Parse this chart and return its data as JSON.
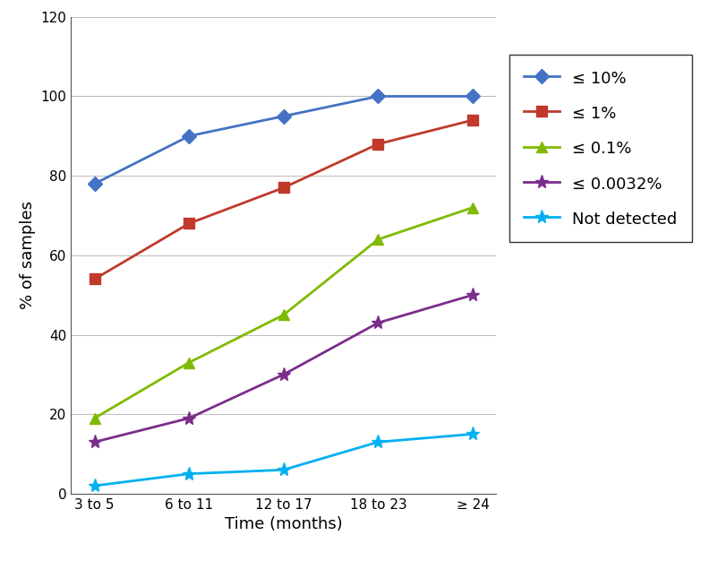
{
  "x_labels": [
    "3 to 5",
    "6 to 11",
    "12 to 17",
    "18 to 23",
    "≥ 24"
  ],
  "x_positions": [
    0,
    1,
    2,
    3,
    4
  ],
  "series": [
    {
      "label": "≤ 10%",
      "values": [
        78,
        90,
        95,
        100,
        100
      ],
      "color": "#4472C4",
      "marker": "D",
      "markersize": 8,
      "markeredgewidth": 1
    },
    {
      "label": "≤ 1%",
      "values": [
        54,
        68,
        77,
        88,
        94
      ],
      "color": "#C0392B",
      "marker": "s",
      "markersize": 8,
      "markeredgewidth": 1
    },
    {
      "label": "≤ 0.1%",
      "values": [
        19,
        33,
        45,
        64,
        72
      ],
      "color": "#7FBA00",
      "marker": "^",
      "markersize": 9,
      "markeredgewidth": 1
    },
    {
      "label": "≤ 0.0032%",
      "values": [
        13,
        19,
        30,
        43,
        50
      ],
      "color": "#7B2D8B",
      "marker": "*",
      "markersize": 11,
      "markeredgewidth": 1
    },
    {
      "label": "Not detected",
      "values": [
        2,
        5,
        6,
        13,
        15
      ],
      "color": "#00B0F0",
      "marker": "*",
      "markersize": 11,
      "markeredgewidth": 1
    }
  ],
  "xlabel": "Time (months)",
  "ylabel": "% of samples",
  "ylim": [
    0,
    120
  ],
  "yticks": [
    0,
    20,
    40,
    60,
    80,
    100,
    120
  ],
  "grid_color": "#BBBBBB",
  "grid_linestyle": "-",
  "grid_linewidth": 0.7,
  "background_color": "#FFFFFF",
  "linewidth": 2.0,
  "label_fontsize": 13,
  "tick_fontsize": 11,
  "legend_fontsize": 13
}
